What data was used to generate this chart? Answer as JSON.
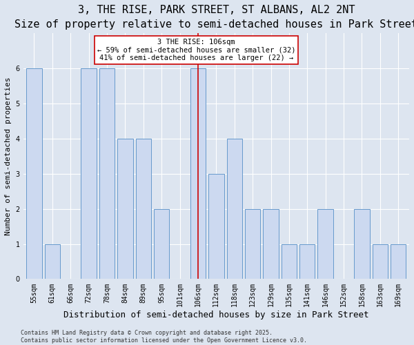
{
  "title": "3, THE RISE, PARK STREET, ST ALBANS, AL2 2NT",
  "subtitle": "Size of property relative to semi-detached houses in Park Street",
  "xlabel": "Distribution of semi-detached houses by size in Park Street",
  "ylabel": "Number of semi-detached properties",
  "categories": [
    "55sqm",
    "61sqm",
    "66sqm",
    "72sqm",
    "78sqm",
    "84sqm",
    "89sqm",
    "95sqm",
    "101sqm",
    "106sqm",
    "112sqm",
    "118sqm",
    "123sqm",
    "129sqm",
    "135sqm",
    "141sqm",
    "146sqm",
    "152sqm",
    "158sqm",
    "163sqm",
    "169sqm"
  ],
  "values": [
    6,
    1,
    0,
    6,
    6,
    4,
    4,
    2,
    0,
    6,
    3,
    4,
    2,
    2,
    1,
    1,
    2,
    0,
    2,
    1,
    1
  ],
  "highlight_index": 9,
  "bar_color": "#ccd9f0",
  "bar_edge_color": "#6699cc",
  "vline_color": "#cc0000",
  "annotation_line1": "3 THE RISE: 106sqm",
  "annotation_line2": "← 59% of semi-detached houses are smaller (32)",
  "annotation_line3": "41% of semi-detached houses are larger (22) →",
  "annotation_box_color": "#ffffff",
  "annotation_box_edge": "#cc0000",
  "ylim": [
    0,
    7
  ],
  "yticks": [
    0,
    1,
    2,
    3,
    4,
    5,
    6,
    7
  ],
  "bg_color": "#dde5f0",
  "plot_bg_color": "#dde5f0",
  "grid_color": "#ffffff",
  "title_fontsize": 11,
  "subtitle_fontsize": 9,
  "xlabel_fontsize": 9,
  "ylabel_fontsize": 8,
  "tick_fontsize": 7,
  "annotation_fontsize": 7.5,
  "footer_fontsize": 6,
  "footer": "Contains HM Land Registry data © Crown copyright and database right 2025.\nContains public sector information licensed under the Open Government Licence v3.0."
}
